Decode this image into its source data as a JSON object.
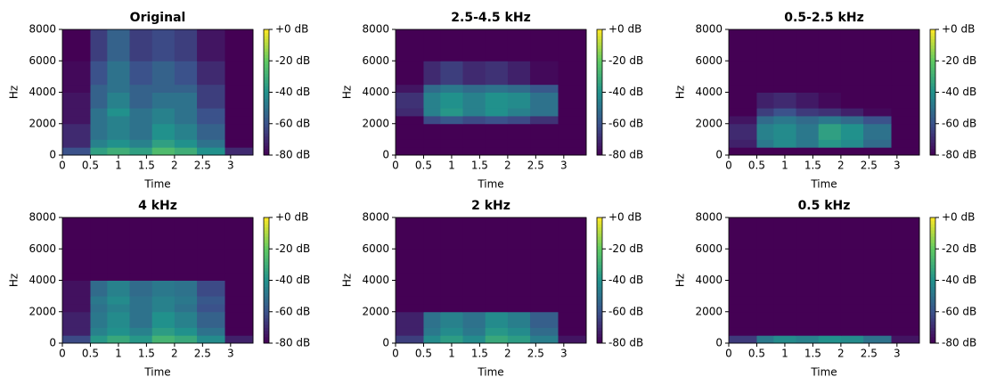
{
  "chart_data": [
    {
      "type": "heatmap",
      "title": "Original",
      "xlabel": "Time",
      "ylabel": "Hz",
      "colormap": "viridis",
      "x_edges": [
        0,
        0.5,
        0.8,
        1.2,
        1.6,
        2.0,
        2.4,
        2.9,
        3.4
      ],
      "y_edges": [
        0,
        500,
        1000,
        2000,
        2500,
        3000,
        4000,
        4500,
        6000,
        8000
      ],
      "z": [
        [
          -60,
          -35,
          -30,
          -35,
          -25,
          -30,
          -40,
          -70
        ],
        [
          -70,
          -45,
          -40,
          -45,
          -35,
          -40,
          -50,
          -80
        ],
        [
          -70,
          -50,
          -45,
          -50,
          -40,
          -45,
          -55,
          -80
        ],
        [
          -75,
          -50,
          -45,
          -50,
          -45,
          -50,
          -60,
          -80
        ],
        [
          -75,
          -50,
          -40,
          -50,
          -45,
          -50,
          -60,
          -80
        ],
        [
          -75,
          -55,
          -45,
          -55,
          -50,
          -50,
          -65,
          -80
        ],
        [
          -78,
          -55,
          -50,
          -55,
          -55,
          -55,
          -65,
          -80
        ],
        [
          -78,
          -60,
          -50,
          -60,
          -55,
          -60,
          -70,
          -80
        ],
        [
          -80,
          -65,
          -55,
          -65,
          -62,
          -65,
          -75,
          -80
        ]
      ],
      "xlim": [
        0,
        3.4
      ],
      "ylim": [
        0,
        8000
      ],
      "xticks": [
        0,
        0.5,
        1,
        1.5,
        2,
        2.5,
        3
      ],
      "yticks": [
        0,
        2000,
        4000,
        6000,
        8000
      ],
      "clim": [
        -80,
        0
      ],
      "cticks": [
        {
          "value": 0,
          "label": "+0 dB"
        },
        {
          "value": -20,
          "label": "-20 dB"
        },
        {
          "value": -40,
          "label": "-40 dB"
        },
        {
          "value": -60,
          "label": "-60 dB"
        },
        {
          "value": -80,
          "label": "-80 dB"
        }
      ]
    },
    {
      "type": "heatmap",
      "title": "2.5-4.5 kHz",
      "xlabel": "Time",
      "ylabel": "Hz",
      "colormap": "viridis",
      "x_edges": [
        0,
        0.5,
        0.8,
        1.2,
        1.6,
        2.0,
        2.4,
        2.9,
        3.4
      ],
      "y_edges": [
        0,
        500,
        1000,
        2000,
        2500,
        3000,
        4000,
        4500,
        6000,
        8000
      ],
      "z": [
        [
          -80,
          -80,
          -80,
          -80,
          -80,
          -80,
          -80,
          -80
        ],
        [
          -80,
          -80,
          -80,
          -80,
          -80,
          -80,
          -80,
          -80
        ],
        [
          -80,
          -80,
          -80,
          -80,
          -80,
          -80,
          -80,
          -80
        ],
        [
          -80,
          -62,
          -58,
          -62,
          -60,
          -62,
          -68,
          -80
        ],
        [
          -70,
          -45,
          -38,
          -45,
          -40,
          -45,
          -50,
          -80
        ],
        [
          -68,
          -45,
          -40,
          -45,
          -40,
          -42,
          -50,
          -80
        ],
        [
          -75,
          -52,
          -48,
          -52,
          -50,
          -52,
          -58,
          -80
        ],
        [
          -80,
          -70,
          -65,
          -70,
          -68,
          -72,
          -78,
          -80
        ],
        [
          -80,
          -80,
          -80,
          -80,
          -80,
          -80,
          -80,
          -80
        ]
      ],
      "xlim": [
        0,
        3.4
      ],
      "ylim": [
        0,
        8000
      ],
      "xticks": [
        0,
        0.5,
        1,
        1.5,
        2,
        2.5,
        3
      ],
      "yticks": [
        0,
        2000,
        4000,
        6000,
        8000
      ],
      "clim": [
        -80,
        0
      ],
      "cticks": [
        {
          "value": 0,
          "label": "+0 dB"
        },
        {
          "value": -20,
          "label": "-20 dB"
        },
        {
          "value": -40,
          "label": "-40 dB"
        },
        {
          "value": -60,
          "label": "-60 dB"
        },
        {
          "value": -80,
          "label": "-80 dB"
        }
      ]
    },
    {
      "type": "heatmap",
      "title": "0.5-2.5 kHz",
      "xlabel": "Time",
      "ylabel": "Hz",
      "colormap": "viridis",
      "x_edges": [
        0,
        0.5,
        0.8,
        1.2,
        1.6,
        2.0,
        2.4,
        2.9,
        3.4
      ],
      "y_edges": [
        0,
        500,
        1000,
        2000,
        2500,
        3000,
        4000,
        4500,
        6000,
        8000
      ],
      "z": [
        [
          -80,
          -80,
          -80,
          -80,
          -80,
          -80,
          -80,
          -80
        ],
        [
          -72,
          -48,
          -42,
          -48,
          -38,
          -42,
          -52,
          -80
        ],
        [
          -70,
          -45,
          -42,
          -48,
          -35,
          -40,
          -50,
          -80
        ],
        [
          -75,
          -52,
          -48,
          -52,
          -48,
          -52,
          -60,
          -80
        ],
        [
          -80,
          -65,
          -60,
          -66,
          -68,
          -72,
          -78,
          -80
        ],
        [
          -80,
          -72,
          -70,
          -74,
          -78,
          -80,
          -80,
          -80
        ],
        [
          -80,
          -80,
          -80,
          -80,
          -80,
          -80,
          -80,
          -80
        ],
        [
          -80,
          -80,
          -80,
          -80,
          -80,
          -80,
          -80,
          -80
        ],
        [
          -80,
          -80,
          -80,
          -80,
          -80,
          -80,
          -80,
          -80
        ]
      ],
      "xlim": [
        0,
        3.4
      ],
      "ylim": [
        0,
        8000
      ],
      "xticks": [
        0,
        0.5,
        1,
        1.5,
        2,
        2.5,
        3
      ],
      "yticks": [
        0,
        2000,
        4000,
        6000,
        8000
      ],
      "clim": [
        -80,
        0
      ],
      "cticks": [
        {
          "value": 0,
          "label": "+0 dB"
        },
        {
          "value": -20,
          "label": "-20 dB"
        },
        {
          "value": -40,
          "label": "-40 dB"
        },
        {
          "value": -60,
          "label": "-60 dB"
        },
        {
          "value": -80,
          "label": "-80 dB"
        }
      ]
    },
    {
      "type": "heatmap",
      "title": "4 kHz",
      "xlabel": "Time",
      "ylabel": "Hz",
      "colormap": "viridis",
      "x_edges": [
        0,
        0.5,
        0.8,
        1.2,
        1.6,
        2.0,
        2.4,
        2.9,
        3.4
      ],
      "y_edges": [
        0,
        500,
        1000,
        2000,
        2500,
        3000,
        4000,
        4500,
        6000,
        8000
      ],
      "z": [
        [
          -62,
          -38,
          -32,
          -38,
          -28,
          -32,
          -42,
          -72
        ],
        [
          -72,
          -45,
          -40,
          -45,
          -36,
          -40,
          -50,
          -80
        ],
        [
          -72,
          -48,
          -42,
          -50,
          -40,
          -45,
          -55,
          -80
        ],
        [
          -76,
          -50,
          -45,
          -50,
          -45,
          -50,
          -60,
          -80
        ],
        [
          -76,
          -48,
          -42,
          -50,
          -45,
          -48,
          -58,
          -80
        ],
        [
          -76,
          -52,
          -45,
          -52,
          -48,
          -50,
          -62,
          -80
        ],
        [
          -80,
          -80,
          -80,
          -80,
          -80,
          -80,
          -80,
          -80
        ],
        [
          -80,
          -80,
          -80,
          -80,
          -80,
          -80,
          -80,
          -80
        ],
        [
          -80,
          -80,
          -80,
          -80,
          -80,
          -80,
          -80,
          -80
        ]
      ],
      "xlim": [
        0,
        3.4
      ],
      "ylim": [
        0,
        8000
      ],
      "xticks": [
        0,
        0.5,
        1,
        1.5,
        2,
        2.5,
        3
      ],
      "yticks": [
        0,
        2000,
        4000,
        6000,
        8000
      ],
      "clim": [
        -80,
        0
      ],
      "cticks": [
        {
          "value": 0,
          "label": "+0 dB"
        },
        {
          "value": -20,
          "label": "-20 dB"
        },
        {
          "value": -40,
          "label": "-40 dB"
        },
        {
          "value": -60,
          "label": "-60 dB"
        },
        {
          "value": -80,
          "label": "-80 dB"
        }
      ]
    },
    {
      "type": "heatmap",
      "title": "2 kHz",
      "xlabel": "Time",
      "ylabel": "Hz",
      "colormap": "viridis",
      "x_edges": [
        0,
        0.5,
        0.8,
        1.2,
        1.6,
        2.0,
        2.4,
        2.9,
        3.4
      ],
      "y_edges": [
        0,
        500,
        1000,
        2000,
        2500,
        3000,
        4000,
        4500,
        6000,
        8000
      ],
      "z": [
        [
          -65,
          -42,
          -36,
          -42,
          -32,
          -36,
          -46,
          -75
        ],
        [
          -72,
          -48,
          -42,
          -48,
          -38,
          -42,
          -52,
          -80
        ],
        [
          -72,
          -50,
          -45,
          -50,
          -42,
          -46,
          -56,
          -80
        ],
        [
          -80,
          -80,
          -80,
          -80,
          -80,
          -80,
          -80,
          -80
        ],
        [
          -80,
          -80,
          -80,
          -80,
          -80,
          -80,
          -80,
          -80
        ],
        [
          -80,
          -80,
          -80,
          -80,
          -80,
          -80,
          -80,
          -80
        ],
        [
          -80,
          -80,
          -80,
          -80,
          -80,
          -80,
          -80,
          -80
        ],
        [
          -80,
          -80,
          -80,
          -80,
          -80,
          -80,
          -80,
          -80
        ],
        [
          -80,
          -80,
          -80,
          -80,
          -80,
          -80,
          -80,
          -80
        ]
      ],
      "xlim": [
        0,
        3.4
      ],
      "ylim": [
        0,
        8000
      ],
      "xticks": [
        0,
        0.5,
        1,
        1.5,
        2,
        2.5,
        3
      ],
      "yticks": [
        0,
        2000,
        4000,
        6000,
        8000
      ],
      "clim": [
        -80,
        0
      ],
      "cticks": [
        {
          "value": 0,
          "label": "+0 dB"
        },
        {
          "value": -20,
          "label": "-20 dB"
        },
        {
          "value": -40,
          "label": "-40 dB"
        },
        {
          "value": -60,
          "label": "-60 dB"
        },
        {
          "value": -80,
          "label": "-80 dB"
        }
      ]
    },
    {
      "type": "heatmap",
      "title": "0.5 kHz",
      "xlabel": "Time",
      "ylabel": "Hz",
      "colormap": "viridis",
      "x_edges": [
        0,
        0.5,
        0.8,
        1.2,
        1.6,
        2.0,
        2.4,
        2.9,
        3.4
      ],
      "y_edges": [
        0,
        500,
        1000,
        2000,
        2500,
        3000,
        4000,
        4500,
        6000,
        8000
      ],
      "z": [
        [
          -66,
          -48,
          -42,
          -45,
          -40,
          -42,
          -50,
          -75
        ],
        [
          -80,
          -80,
          -80,
          -80,
          -80,
          -80,
          -80,
          -80
        ],
        [
          -80,
          -80,
          -80,
          -80,
          -80,
          -80,
          -80,
          -80
        ],
        [
          -80,
          -80,
          -80,
          -80,
          -80,
          -80,
          -80,
          -80
        ],
        [
          -80,
          -80,
          -80,
          -80,
          -80,
          -80,
          -80,
          -80
        ],
        [
          -80,
          -80,
          -80,
          -80,
          -80,
          -80,
          -80,
          -80
        ],
        [
          -80,
          -80,
          -80,
          -80,
          -80,
          -80,
          -80,
          -80
        ],
        [
          -80,
          -80,
          -80,
          -80,
          -80,
          -80,
          -80,
          -80
        ],
        [
          -80,
          -80,
          -80,
          -80,
          -80,
          -80,
          -80,
          -80
        ]
      ],
      "xlim": [
        0,
        3.4
      ],
      "ylim": [
        0,
        8000
      ],
      "xticks": [
        0,
        0.5,
        1,
        1.5,
        2,
        2.5,
        3
      ],
      "yticks": [
        0,
        2000,
        4000,
        6000,
        8000
      ],
      "clim": [
        -80,
        0
      ],
      "cticks": [
        {
          "value": 0,
          "label": "+0 dB"
        },
        {
          "value": -20,
          "label": "-20 dB"
        },
        {
          "value": -40,
          "label": "-40 dB"
        },
        {
          "value": -60,
          "label": "-60 dB"
        },
        {
          "value": -80,
          "label": "-80 dB"
        }
      ]
    }
  ]
}
